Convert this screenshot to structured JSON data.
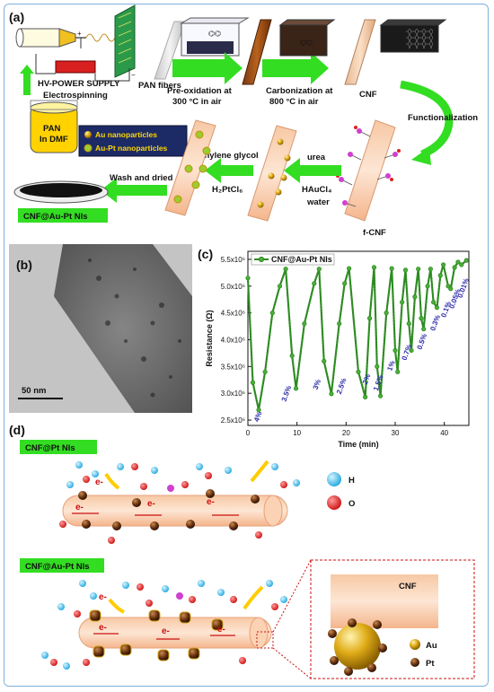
{
  "colors": {
    "arrow_green": "#33dd22",
    "series_green": "#2e8b22",
    "label_navy": "#2a2aa8",
    "electron_red": "#cc1111",
    "h_cyan": "#2bb7e8",
    "o_red": "#dd2222",
    "au_gold": "#d4a010",
    "pt_brown": "#5a3010",
    "frame_blue": "#7fb0de"
  },
  "icons": {
    "arrows": "green-block-arrow",
    "legend_au": "gold-sphere",
    "legend_pt": "brown-sphere"
  },
  "panel_a": {
    "label": "(a)",
    "power_supply": "HV-POWER SUPPLY",
    "electrospinning": "Electrospinning",
    "pan_fibers": "PAN fibers",
    "step_preox_1": "Pre-oxidation at",
    "step_preox_2": "300 °C  in air",
    "step_carb_1": "Carbonization at",
    "step_carb_2": "800 °C  in air",
    "cnf": "CNF",
    "functionalization": "Functionalization",
    "beaker_1": "PAN",
    "beaker_2": "In DMF",
    "legend_au": "Au nanoparticles",
    "legend_aupt": "Au-Pt  nanoparticles",
    "ethylene_glycol": "Ethylene glycol",
    "h2ptcl6": "H₂PtCl₆",
    "urea": "urea",
    "haucl4": "HAuCl₄",
    "water": "water",
    "fcnf": "f-CNF",
    "wash": "Wash and dried",
    "product": "CNF@Au-Pt NIs"
  },
  "panel_b": {
    "label": "(b)",
    "scale": "50 nm"
  },
  "panel_c": {
    "label": "(c)"
  },
  "panel_d": {
    "label": "(d)",
    "tag_pt": "CNF@Pt NIs",
    "tag_aupt": "CNF@Au-Pt NIs",
    "h_label": "H",
    "o_label": "O",
    "electron": "e-",
    "inset_cnf": "CNF",
    "inset_au": "Au",
    "inset_pt": "Pt"
  },
  "chart_data": {
    "type": "line",
    "title": "",
    "xlabel": "Time (min)",
    "ylabel": "Resistance (Ω)",
    "xlim": [
      0,
      45
    ],
    "ylim": [
      2400000,
      5650000
    ],
    "xticks": [
      0,
      10,
      20,
      30,
      40
    ],
    "yticks": [
      2500000,
      3000000,
      3500000,
      4000000,
      4500000,
      5000000,
      5500000
    ],
    "ytick_labels": [
      "2.5x10⁶",
      "3.0x10⁶",
      "3.5x10⁶",
      "4.0x10⁶",
      "4.5x10⁶",
      "5.0x10⁶",
      "5.5x10⁶"
    ],
    "legend": "top-left",
    "series": [
      {
        "name": "CNF@Au-Pt NIs",
        "x": [
          0,
          1.0,
          2.2,
          3.5,
          5.0,
          6.5,
          7.7,
          9.0,
          9.8,
          11.5,
          13.5,
          14.5,
          15.5,
          17.0,
          18.6,
          19.7,
          20.6,
          22.5,
          23.9,
          24.8,
          25.7,
          26.3,
          27.0,
          28.2,
          29.3,
          30.0,
          30.5,
          31.4,
          32.1,
          32.8,
          33.3,
          34.0,
          34.7,
          35.3,
          35.8,
          36.6,
          37.2,
          37.8,
          38.5,
          39.2,
          39.8,
          40.8,
          41.3,
          42.1,
          42.8,
          43.5,
          44.5
        ],
        "y": [
          5150000,
          3200000,
          2690000,
          3400000,
          4500000,
          5000000,
          5320000,
          3700000,
          3090000,
          4300000,
          5050000,
          5320000,
          3600000,
          2990000,
          4300000,
          5050000,
          5330000,
          3400000,
          2930000,
          4400000,
          5350000,
          3500000,
          2950000,
          4500000,
          5330000,
          3800000,
          3400000,
          4700000,
          5300000,
          4300000,
          3800000,
          4800000,
          5320000,
          4400000,
          4200000,
          5000000,
          5320000,
          4700000,
          4600000,
          5200000,
          5400000,
          5000000,
          4950000,
          5350000,
          5450000,
          5400000,
          5480000
        ]
      }
    ],
    "annotations": [
      {
        "text": "4%",
        "x": 2.5,
        "y": 2550000
      },
      {
        "text": "3.5%",
        "x": 8.3,
        "y": 2980000
      },
      {
        "text": "3%",
        "x": 14.5,
        "y": 3150000
      },
      {
        "text": "2.5%",
        "x": 19.5,
        "y": 3120000
      },
      {
        "text": "2%",
        "x": 24.6,
        "y": 3250000
      },
      {
        "text": "1.5%",
        "x": 27.0,
        "y": 3180000
      },
      {
        "text": "1%",
        "x": 29.6,
        "y": 3500000
      },
      {
        "text": "0.7%",
        "x": 32.8,
        "y": 3750000
      },
      {
        "text": "0.5%",
        "x": 35.9,
        "y": 3950000
      },
      {
        "text": "0.3%",
        "x": 38.6,
        "y": 4300000
      },
      {
        "text": "0.1%",
        "x": 40.8,
        "y": 4550000
      },
      {
        "text": "0.05%",
        "x": 42.6,
        "y": 4750000
      },
      {
        "text": "0.01%",
        "x": 44.3,
        "y": 4950000
      }
    ]
  }
}
